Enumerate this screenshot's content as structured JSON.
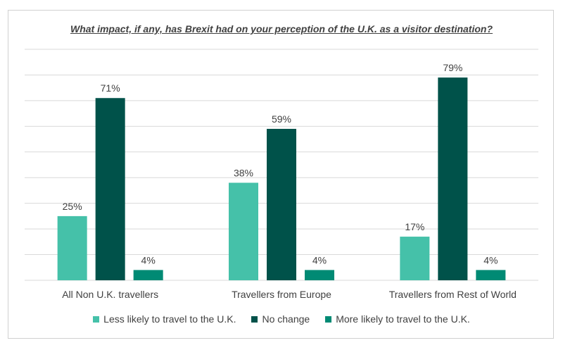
{
  "chart_data": {
    "type": "bar",
    "title": "What impact, if any, has Brexit had on your perception of the U.K. as a visitor destination?",
    "categories": [
      "All Non U.K. travellers",
      "Travellers from Europe",
      "Travellers from Rest of World"
    ],
    "series": [
      {
        "name": "Less likely to travel to the U.K.",
        "values": [
          25,
          38,
          17
        ],
        "labels": [
          "25%",
          "38%",
          "17%"
        ],
        "color": "#45c1a9"
      },
      {
        "name": "No change",
        "values": [
          71,
          59,
          79
        ],
        "labels": [
          "71%",
          "59%",
          "79%"
        ],
        "color": "#00524a"
      },
      {
        "name": "More likely to travel to the U.K.",
        "values": [
          4,
          4,
          4
        ],
        "labels": [
          "4%",
          "4%",
          "4%"
        ],
        "color": "#008a74"
      }
    ],
    "ylim": [
      0,
      90
    ],
    "grid": true,
    "legend_position": "bottom"
  }
}
